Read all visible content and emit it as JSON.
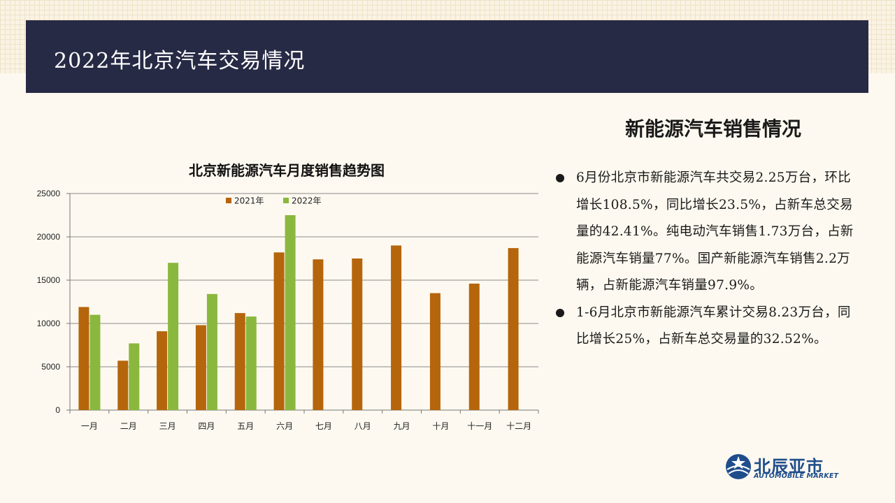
{
  "header": {
    "title": "2022年北京汽车交易情况"
  },
  "section": {
    "title": "新能源汽车销售情况",
    "bullets": [
      "6月份北京市新能源汽车共交易2.25万台，环比增长108.5%，同比增长23.5%，占新车总交易量的42.41%。纯电动汽车销售1.73万台，占新能源汽车销量77%。国产新能源汽车销售2.2万辆，占新能源汽车销量97.9%。",
      "1-6月北京市新能源汽车累计交易8.23万台，同比增长25%，占新车总交易量的32.52%。"
    ]
  },
  "logo": {
    "name": "北辰亚市",
    "subtitle": "AUTOMOBILE MARKET"
  },
  "colors": {
    "series_2021": "#b5650b",
    "series_2022": "#8ab83e",
    "banner": "#272a45"
  },
  "chart_data": {
    "type": "bar",
    "title": "北京新能源汽车月度销售趋势图",
    "categories": [
      "一月",
      "二月",
      "三月",
      "四月",
      "五月",
      "六月",
      "七月",
      "八月",
      "九月",
      "十月",
      "十一月",
      "十二月"
    ],
    "series": [
      {
        "name": "2021年",
        "values": [
          11900,
          5700,
          9100,
          9800,
          11200,
          18200,
          17400,
          17500,
          19000,
          13500,
          14600,
          18700
        ]
      },
      {
        "name": "2022年",
        "values": [
          11000,
          7700,
          17000,
          13400,
          10800,
          22500,
          null,
          null,
          null,
          null,
          null,
          null
        ]
      }
    ],
    "ylim": [
      0,
      25000
    ],
    "yticks": [
      0,
      5000,
      10000,
      15000,
      20000,
      25000
    ],
    "grid": true,
    "legend": "top-center"
  }
}
